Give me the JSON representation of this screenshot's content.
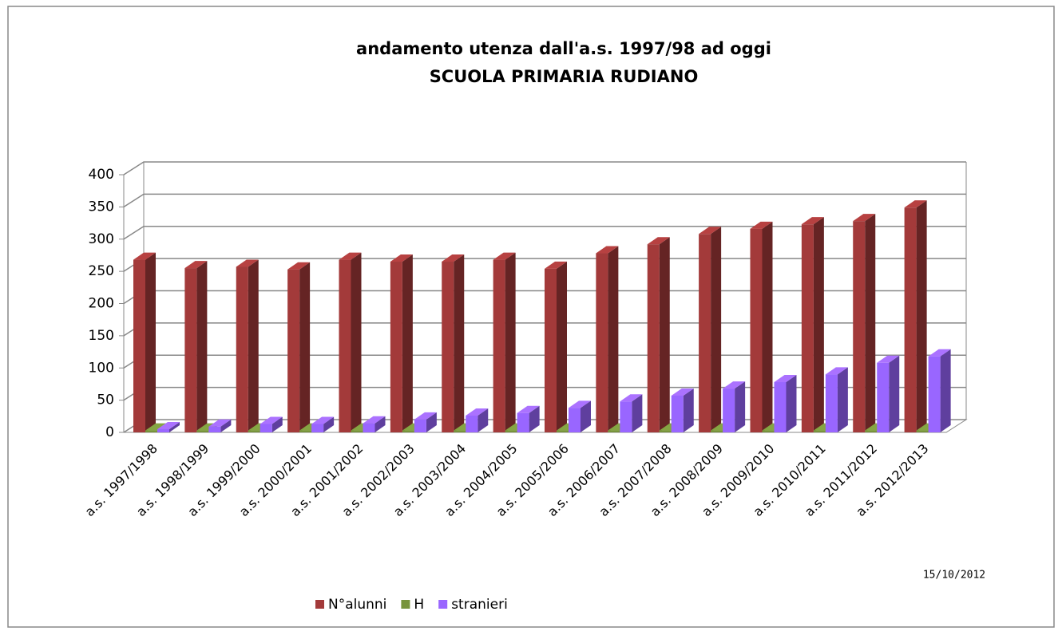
{
  "chart_data": {
    "type": "bar3d",
    "title": "andamento utenza dall'a.s. 1997/98 ad oggi",
    "subtitle": "SCUOLA PRIMARIA  RUDIANO",
    "annotation": "15/10/2012",
    "categories": [
      "a.s. 1997/1998",
      "a.s. 1998/1999",
      "a.s. 1999/2000",
      "a.s. 2000/2001",
      "a.s. 2001/2002",
      "a.s. 2002/2003",
      "a.s. 2003/2004",
      "a.s. 2004/2005",
      "a.s. 2005/2006",
      "a.s. 2006/2007",
      "a.s. 2007/2008",
      "a.s. 2008/2009",
      "a.s. 2009/2010",
      "a.s. 2010/2011",
      "a.s. 2011/2012",
      "a.s. 2012/2013"
    ],
    "series": [
      {
        "name": "N°alunni",
        "color": "#a33a3a",
        "values": [
          268,
          255,
          257,
          253,
          268,
          265,
          265,
          268,
          254,
          278,
          292,
          308,
          316,
          323,
          328,
          349
        ]
      },
      {
        "name": "H",
        "color": "#77933c",
        "values": [
          3,
          3,
          3,
          3,
          3,
          3,
          3,
          3,
          3,
          3,
          3,
          3,
          3,
          3,
          3,
          3
        ]
      },
      {
        "name": "stranieri",
        "color": "#9966ff",
        "values": [
          5,
          9,
          13,
          13,
          14,
          20,
          26,
          30,
          38,
          48,
          57,
          68,
          78,
          90,
          108,
          118
        ]
      }
    ],
    "ylim": [
      0,
      400
    ],
    "yticks": [
      0,
      50,
      100,
      150,
      200,
      250,
      300,
      350,
      400
    ],
    "grid": true,
    "legend": "bottom"
  }
}
